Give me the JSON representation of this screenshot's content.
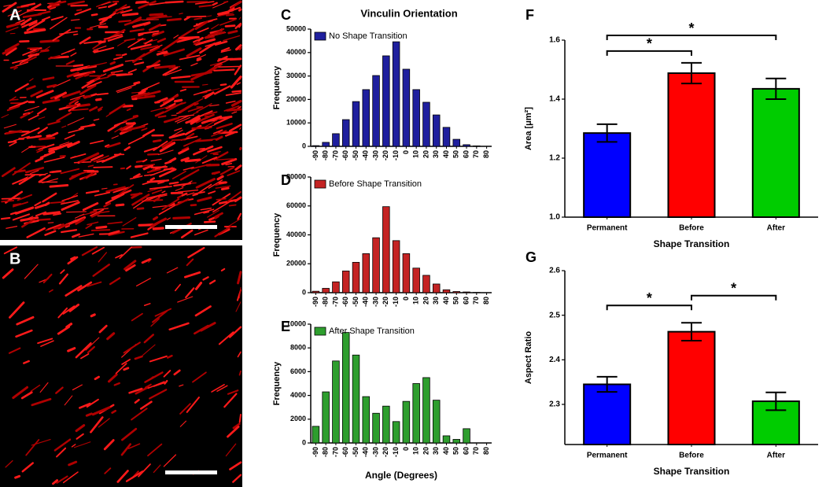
{
  "images": [
    {
      "label": "A"
    },
    {
      "label": "B"
    }
  ],
  "chart_data": [
    {
      "type": "bar",
      "label": "C",
      "title": "Vinculin Orientation",
      "ylabel": "Frequency",
      "categories": [
        "-90",
        "-80",
        "-70",
        "-60",
        "-50",
        "-40",
        "-30",
        "-20",
        "-10",
        "0",
        "10",
        "20",
        "30",
        "40",
        "50",
        "60",
        "70",
        "80"
      ],
      "series": [
        {
          "name": "No Shape Transition",
          "color": "#1f1f9e",
          "values": [
            300,
            1700,
            5400,
            11400,
            19100,
            24200,
            30200,
            38600,
            44600,
            32900,
            24200,
            18800,
            13400,
            8100,
            3000,
            700,
            200,
            0
          ]
        }
      ],
      "ylim": [
        0,
        50000
      ],
      "yticks": [
        0,
        10000,
        20000,
        30000,
        40000,
        50000
      ],
      "legend": "upper left"
    },
    {
      "type": "bar",
      "label": "D",
      "ylabel": "Frequency",
      "categories": [
        "-90",
        "-80",
        "-70",
        "-60",
        "-50",
        "-40",
        "-30",
        "-20",
        "-10",
        "0",
        "10",
        "20",
        "30",
        "40",
        "50",
        "60",
        "70",
        "80"
      ],
      "series": [
        {
          "name": "Before Shape Transition",
          "color": "#c42323",
          "values": [
            1000,
            3000,
            7500,
            15000,
            21000,
            27000,
            38000,
            59500,
            36000,
            27000,
            17000,
            12000,
            6000,
            2000,
            800,
            500,
            200,
            0
          ]
        }
      ],
      "ylim": [
        0,
        80000
      ],
      "yticks": [
        0,
        20000,
        40000,
        60000,
        80000
      ],
      "legend": "upper left"
    },
    {
      "type": "bar",
      "label": "E",
      "ylabel": "Frequency",
      "xlabel": "Angle (Degrees)",
      "categories": [
        "-90",
        "-80",
        "-70",
        "-60",
        "-50",
        "-40",
        "-30",
        "-20",
        "-10",
        "0",
        "10",
        "20",
        "30",
        "40",
        "50",
        "60",
        "70",
        "80"
      ],
      "series": [
        {
          "name": "After Shape Transition",
          "color": "#2e9e2e",
          "values": [
            1400,
            4300,
            6900,
            9300,
            7400,
            3900,
            2500,
            3100,
            1800,
            3500,
            5000,
            5500,
            3600,
            600,
            300,
            1200,
            0,
            0
          ]
        }
      ],
      "ylim": [
        0,
        10000
      ],
      "yticks": [
        0,
        2000,
        4000,
        6000,
        8000,
        10000
      ],
      "legend": "upper left"
    },
    {
      "type": "bar",
      "label": "F",
      "ylabel": "Area [μm²]",
      "xlabel": "Shape Transition",
      "categories": [
        "Permanent",
        "Before",
        "After"
      ],
      "values": [
        1.285,
        1.488,
        1.435
      ],
      "errors": [
        0.03,
        0.035,
        0.035
      ],
      "colors": [
        "#0000ff",
        "#ff0000",
        "#00cc00"
      ],
      "ylim": [
        1.0,
        1.6
      ],
      "yticks": [
        {
          "value": 1.0,
          "label": "1.0"
        },
        1.2,
        1.4,
        1.6
      ],
      "significance": [
        {
          "pair": [
            0,
            1
          ],
          "y": 1.563,
          "label": "*"
        },
        {
          "pair": [
            0,
            2
          ],
          "y": 1.616,
          "label": "*"
        }
      ]
    },
    {
      "type": "bar",
      "label": "G",
      "ylabel": "Aspect Ratio",
      "xlabel": "Shape Transition",
      "categories": [
        "Permanent",
        "Before",
        "After"
      ],
      "values": [
        2.345,
        2.463,
        2.307
      ],
      "errors": [
        0.017,
        0.02,
        0.02
      ],
      "colors": [
        "#0000ff",
        "#ff0000",
        "#00cc00"
      ],
      "ylim": [
        2.21,
        2.6
      ],
      "yticks": [
        2.3,
        2.4,
        2.5,
        2.6
      ],
      "significance": [
        {
          "pair": [
            0,
            1
          ],
          "y": 2.522,
          "label": "*"
        },
        {
          "pair": [
            1,
            2
          ],
          "y": 2.544,
          "label": "*"
        }
      ]
    }
  ]
}
